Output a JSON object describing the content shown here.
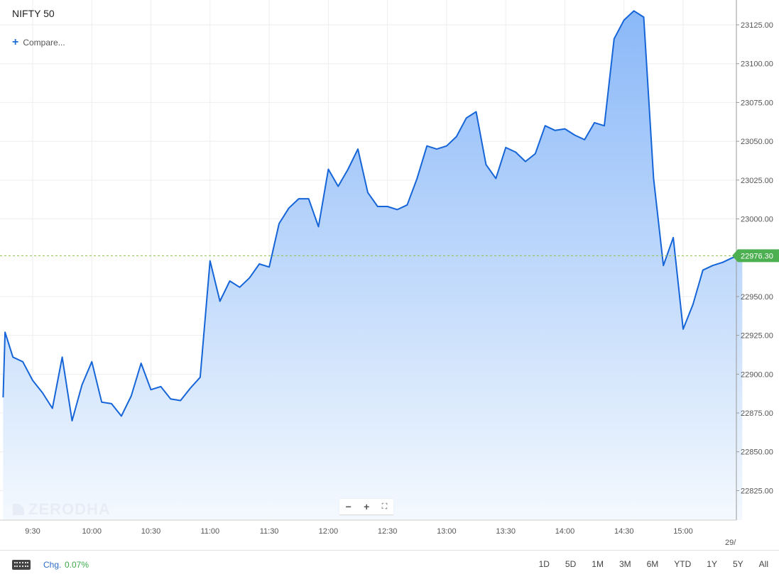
{
  "header": {
    "title": "NIFTY 50",
    "compare_label": "Compare..."
  },
  "watermark": "ZERODHA",
  "zoom_controls": {
    "zoom_out": "−",
    "zoom_in": "+",
    "fullscreen": "⛶"
  },
  "footer": {
    "chg_label": "Chg.",
    "chg_value": "0.07%",
    "ranges": [
      "1D",
      "5D",
      "1M",
      "3M",
      "6M",
      "YTD",
      "1Y",
      "5Y",
      "All"
    ]
  },
  "colors": {
    "line": "#1565d8",
    "fill_top": "#8ab8f8",
    "fill_bottom": "#f4f9fe",
    "grid": "#eeeeee",
    "current_price_tag": "#4caf50",
    "current_price_dashed": "#8bc34a"
  },
  "chart_data": {
    "type": "area",
    "title": "NIFTY 50",
    "x_tick_labels": [
      "9:30",
      "10:00",
      "10:30",
      "11:00",
      "11:30",
      "12:00",
      "12:30",
      "13:00",
      "13:30",
      "14:00",
      "14:30",
      "15:00"
    ],
    "x_date_label": "29/",
    "y_tick_labels": [
      "23125.00",
      "23100.00",
      "23075.00",
      "23050.00",
      "23025.00",
      "23000.00",
      "22950.00",
      "22925.00",
      "22900.00",
      "22875.00",
      "22850.00",
      "22825.00"
    ],
    "y_ticks": [
      23125,
      23100,
      23075,
      23050,
      23025,
      23000,
      22950,
      22925,
      22900,
      22875,
      22850,
      22825
    ],
    "ylim": [
      22806,
      23141
    ],
    "x_start": "09:15",
    "x_end": "15:30",
    "current_price": 22976.3,
    "current_price_label": "22976.30",
    "grid": true,
    "series": [
      {
        "x": [
          "09:15",
          "09:16",
          "09:20",
          "09:25",
          "09:30",
          "09:35",
          "09:40",
          "09:45",
          "09:50",
          "09:55",
          "10:00",
          "10:05",
          "10:10",
          "10:15",
          "10:20",
          "10:25",
          "10:30",
          "10:35",
          "10:40",
          "10:45",
          "10:50",
          "10:55",
          "11:00",
          "11:05",
          "11:10",
          "11:15",
          "11:20",
          "11:25",
          "11:30",
          "11:35",
          "11:40",
          "11:45",
          "11:50",
          "11:55",
          "12:00",
          "12:05",
          "12:10",
          "12:15",
          "12:20",
          "12:25",
          "12:30",
          "12:35",
          "12:40",
          "12:45",
          "12:50",
          "12:55",
          "13:00",
          "13:05",
          "13:10",
          "13:15",
          "13:20",
          "13:25",
          "13:30",
          "13:35",
          "13:40",
          "13:45",
          "13:50",
          "13:55",
          "14:00",
          "14:05",
          "14:10",
          "14:15",
          "14:20",
          "14:25",
          "14:30",
          "14:35",
          "14:40",
          "14:45",
          "14:50",
          "14:55",
          "15:00",
          "15:05",
          "15:10",
          "15:15",
          "15:20",
          "15:25",
          "15:30"
        ],
        "y": [
          22885,
          22927,
          22911,
          22908,
          22896,
          22888,
          22878,
          22911,
          22870,
          22893,
          22908,
          22882,
          22881,
          22873,
          22886,
          22907,
          22890,
          22892,
          22884,
          22883,
          22891,
          22898,
          22973,
          22947,
          22960,
          22956,
          22962,
          22971,
          22969,
          22997,
          23007,
          23013,
          23013,
          22995,
          23032,
          23021,
          23032,
          23045,
          23017,
          23008,
          23008,
          23006,
          23009,
          23026,
          23047,
          23045,
          23047,
          23053,
          23065,
          23069,
          23035,
          23026,
          23046,
          23043,
          23037,
          23042,
          23060,
          23057,
          23058,
          23054,
          23051,
          23062,
          23060,
          23116,
          23128,
          23134,
          23130,
          23026,
          22970,
          22988,
          22929,
          22945,
          22967,
          22970,
          22972,
          22975,
          22976.3
        ]
      }
    ]
  }
}
